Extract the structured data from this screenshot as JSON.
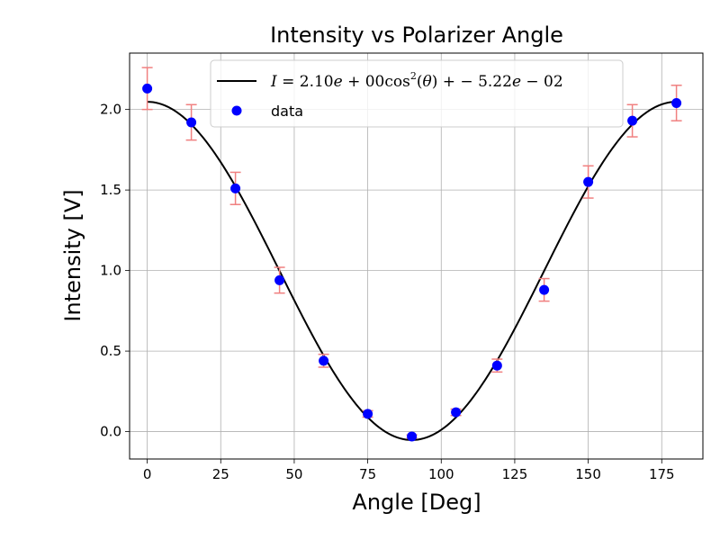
{
  "chart_data": {
    "type": "scatter",
    "title": "Intensity vs Polarizer Angle",
    "xlabel": "Angle [Deg]",
    "ylabel": "Intensity [V]",
    "xlim": [
      -6,
      189
    ],
    "ylim": [
      -0.17,
      2.35
    ],
    "xticks": [
      0,
      25,
      50,
      75,
      100,
      125,
      150,
      175
    ],
    "yticks": [
      0.0,
      0.5,
      1.0,
      1.5,
      2.0
    ],
    "xtick_labels": [
      "0",
      "25",
      "50",
      "75",
      "100",
      "125",
      "150",
      "175"
    ],
    "ytick_labels": [
      "0.0",
      "0.5",
      "1.0",
      "1.5",
      "2.0"
    ],
    "grid": true,
    "legend_position": "top-center",
    "series": [
      {
        "name": "data",
        "kind": "scatter-errorbar",
        "color": "#0000ff",
        "errorbar_color": "#f08080",
        "x": [
          0,
          15,
          30,
          45,
          60,
          75,
          90,
          105,
          119,
          135,
          150,
          165,
          180
        ],
        "y": [
          2.13,
          1.92,
          1.51,
          0.94,
          0.44,
          0.11,
          -0.03,
          0.12,
          0.41,
          0.88,
          1.55,
          1.93,
          2.04
        ],
        "yerr": [
          0.13,
          0.11,
          0.1,
          0.08,
          0.04,
          0.02,
          0.01,
          0.02,
          0.04,
          0.07,
          0.1,
          0.1,
          0.11
        ]
      },
      {
        "name": "I = 2.10e+00 cos²(θ) + −5.22e−02",
        "kind": "fit-line",
        "color": "#000000",
        "amplitude": 2.1,
        "offset": -0.0522
      }
    ],
    "legend": {
      "fit_label": {
        "lhs": "I",
        "eq_a": " = 2.10",
        "e1": "e",
        "eq_b": " + 00cos",
        "sup": "2",
        "eq_c": "(",
        "theta": "θ",
        "eq_d": ") + − 5.22",
        "e2": "e",
        "eq_e": " − 02"
      },
      "data_label": "data"
    }
  }
}
